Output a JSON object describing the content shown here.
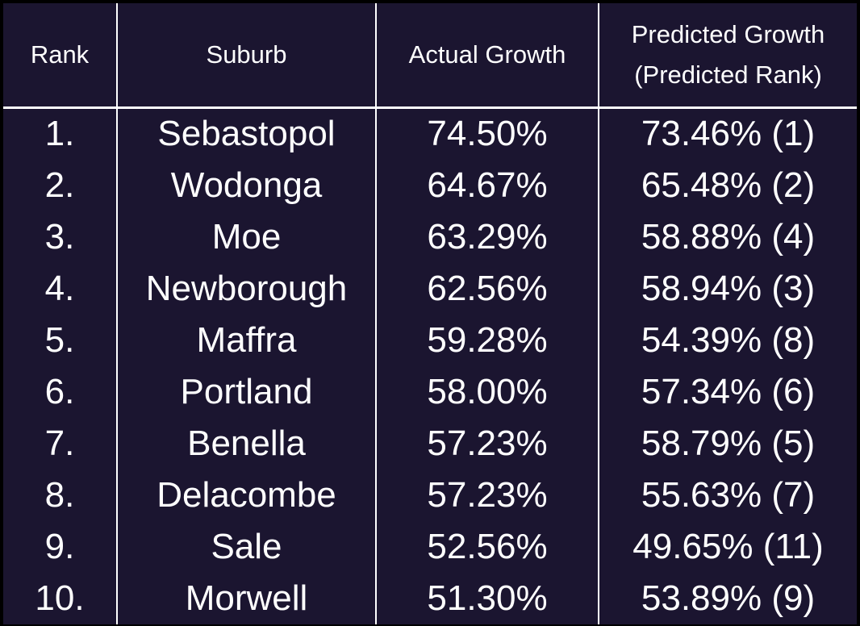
{
  "chart_data": {
    "type": "table",
    "columns": [
      "Rank",
      "Suburb",
      "Actual Growth",
      [
        "Predicted Growth",
        "(Predicted Rank)"
      ]
    ],
    "rows": [
      {
        "rank": "1.",
        "suburb": "Sebastopol",
        "actual": "74.50%",
        "predicted": "73.46% (1)"
      },
      {
        "rank": "2.",
        "suburb": "Wodonga",
        "actual": "64.67%",
        "predicted": "65.48% (2)"
      },
      {
        "rank": "3.",
        "suburb": "Moe",
        "actual": "63.29%",
        "predicted": "58.88% (4)"
      },
      {
        "rank": "4.",
        "suburb": "Newborough",
        "actual": "62.56%",
        "predicted": "58.94% (3)"
      },
      {
        "rank": "5.",
        "suburb": "Maffra",
        "actual": "59.28%",
        "predicted": "54.39% (8)"
      },
      {
        "rank": "6.",
        "suburb": "Portland",
        "actual": "58.00%",
        "predicted": "57.34% (6)"
      },
      {
        "rank": "7.",
        "suburb": "Benella",
        "actual": "57.23%",
        "predicted": "58.79% (5)"
      },
      {
        "rank": "8.",
        "suburb": "Delacombe",
        "actual": "57.23%",
        "predicted": "55.63% (7)"
      },
      {
        "rank": "9.",
        "suburb": "Sale",
        "actual": "52.56%",
        "predicted": "49.65% (11)"
      },
      {
        "rank": "10.",
        "suburb": "Morwell",
        "actual": "51.30%",
        "predicted": "53.89% (9)"
      }
    ]
  },
  "colors": {
    "background": "#1b1530",
    "text": "#ffffff",
    "lines": "#ffffff",
    "frame": "#000000"
  }
}
